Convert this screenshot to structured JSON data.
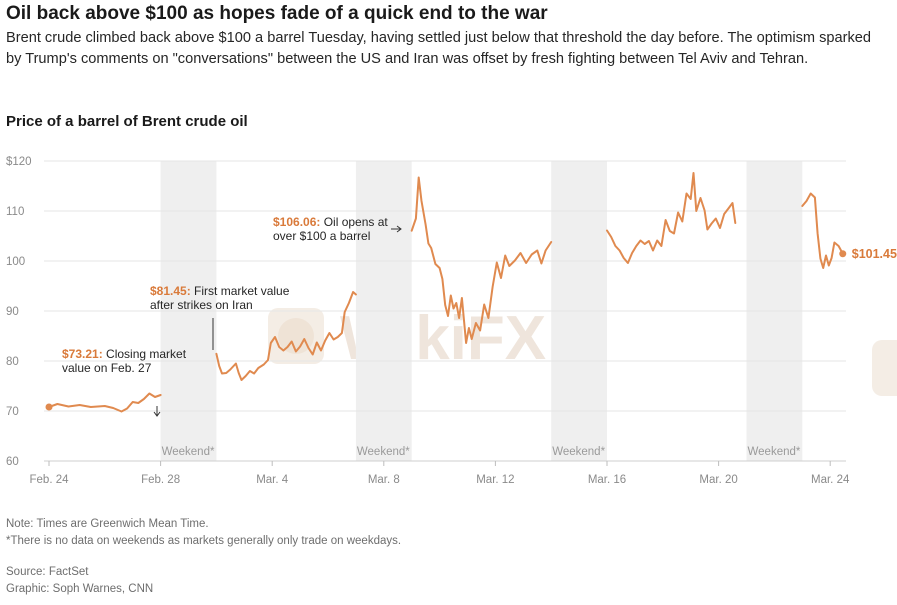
{
  "headline": "Oil back above $100 as hopes fade of a quick end to the war",
  "dek": "Brent crude climbed back above $100 a barrel Tuesday, having settled just below that threshold the day before. The optimism sparked by Trump's comments on \"conversations\" between the US and Iran was offset by fresh fighting between Tel Aviv and Tehran.",
  "chart_title": "Price of a barrel of Brent crude oil",
  "colors": {
    "line": "#e08a4f",
    "highlight": "#d97a3a",
    "weekend": "#efefef",
    "grid": "#e6e6e6"
  },
  "watermark": "WikiFX",
  "chart_data": {
    "type": "line",
    "title": "Price of a barrel of Brent crude oil",
    "xlabel": "",
    "ylabel": "",
    "unit": "USD per barrel",
    "x_domain_days": [
      0,
      28.5
    ],
    "ylim": [
      60,
      120
    ],
    "y_ticks": [
      {
        "value": 60,
        "label": "60"
      },
      {
        "value": 70,
        "label": "70"
      },
      {
        "value": 80,
        "label": "80"
      },
      {
        "value": 90,
        "label": "90"
      },
      {
        "value": 100,
        "label": "100"
      },
      {
        "value": 110,
        "label": "110"
      },
      {
        "value": 120,
        "label": "$120"
      }
    ],
    "x_ticks": [
      {
        "day": 0,
        "label": "Feb. 24"
      },
      {
        "day": 4,
        "label": "Feb. 28"
      },
      {
        "day": 8,
        "label": "Mar. 4"
      },
      {
        "day": 12,
        "label": "Mar. 8"
      },
      {
        "day": 16,
        "label": "Mar. 12"
      },
      {
        "day": 20,
        "label": "Mar. 16"
      },
      {
        "day": 24,
        "label": "Mar. 20"
      },
      {
        "day": 28,
        "label": "Mar. 24"
      }
    ],
    "weekends": [
      {
        "start": 4,
        "end": 6,
        "label": "Weekend*"
      },
      {
        "start": 11,
        "end": 13,
        "label": "Weekend*"
      },
      {
        "start": 18,
        "end": 20,
        "label": "Weekend*"
      },
      {
        "start": 25,
        "end": 27,
        "label": "Weekend*"
      }
    ],
    "series": [
      {
        "name": "Brent crude",
        "segments": [
          [
            [
              0,
              70.8
            ],
            [
              0.3,
              71.4
            ],
            [
              0.7,
              70.9
            ],
            [
              1.1,
              71.2
            ],
            [
              1.5,
              70.8
            ],
            [
              2,
              71.0
            ],
            [
              2.3,
              70.6
            ],
            [
              2.6,
              69.9
            ],
            [
              2.8,
              70.5
            ],
            [
              3.0,
              71.8
            ],
            [
              3.2,
              71.6
            ],
            [
              3.4,
              72.4
            ],
            [
              3.6,
              73.5
            ],
            [
              3.8,
              72.8
            ],
            [
              4.0,
              73.21
            ]
          ],
          [
            [
              6.0,
              81.45
            ],
            [
              6.1,
              79.0
            ],
            [
              6.2,
              77.5
            ],
            [
              6.35,
              77.6
            ],
            [
              6.5,
              78.3
            ],
            [
              6.7,
              79.5
            ],
            [
              6.8,
              77.6
            ],
            [
              6.9,
              76.2
            ],
            [
              7.05,
              77.0
            ],
            [
              7.2,
              78.0
            ],
            [
              7.35,
              77.5
            ],
            [
              7.5,
              78.6
            ],
            [
              7.7,
              79.3
            ],
            [
              7.85,
              80.2
            ],
            [
              7.95,
              83.6
            ],
            [
              8.1,
              84.8
            ],
            [
              8.25,
              82.8
            ],
            [
              8.4,
              82.1
            ],
            [
              8.55,
              82.8
            ],
            [
              8.7,
              83.9
            ],
            [
              8.85,
              81.9
            ],
            [
              9.0,
              82.9
            ],
            [
              9.15,
              84.4
            ],
            [
              9.3,
              82.6
            ],
            [
              9.45,
              81.3
            ],
            [
              9.6,
              83.7
            ],
            [
              9.75,
              82.1
            ],
            [
              9.9,
              84.1
            ],
            [
              10.05,
              85.6
            ],
            [
              10.2,
              84.3
            ],
            [
              10.35,
              84.8
            ],
            [
              10.5,
              85.6
            ],
            [
              10.6,
              89.8
            ],
            [
              10.75,
              91.6
            ],
            [
              10.9,
              93.8
            ],
            [
              11.0,
              93.3
            ]
          ],
          [
            [
              13.0,
              106.06
            ],
            [
              13.15,
              108.5
            ],
            [
              13.25,
              116.7
            ],
            [
              13.35,
              112.0
            ],
            [
              13.5,
              107.3
            ],
            [
              13.6,
              103.5
            ],
            [
              13.7,
              102.6
            ],
            [
              13.85,
              99.4
            ],
            [
              14.0,
              98.6
            ],
            [
              14.1,
              96.4
            ],
            [
              14.2,
              91.2
            ],
            [
              14.3,
              89.0
            ],
            [
              14.4,
              93.1
            ],
            [
              14.5,
              90.5
            ],
            [
              14.6,
              91.6
            ],
            [
              14.7,
              88.6
            ],
            [
              14.8,
              92.6
            ],
            [
              14.95,
              83.6
            ],
            [
              15.05,
              86.6
            ],
            [
              15.15,
              84.4
            ],
            [
              15.3,
              87.6
            ],
            [
              15.45,
              86.1
            ],
            [
              15.6,
              91.3
            ],
            [
              15.75,
              88.6
            ],
            [
              15.9,
              94.8
            ],
            [
              16.05,
              99.7
            ],
            [
              16.2,
              96.6
            ],
            [
              16.35,
              101.1
            ],
            [
              16.5,
              99.0
            ],
            [
              16.7,
              100.1
            ],
            [
              16.9,
              101.6
            ],
            [
              17.1,
              99.6
            ],
            [
              17.3,
              101.3
            ],
            [
              17.5,
              102.1
            ],
            [
              17.65,
              99.5
            ],
            [
              17.8,
              102.1
            ],
            [
              18.0,
              103.8
            ]
          ],
          [
            [
              20.0,
              106.1
            ],
            [
              20.15,
              104.8
            ],
            [
              20.3,
              103.0
            ],
            [
              20.45,
              102.1
            ],
            [
              20.6,
              100.6
            ],
            [
              20.75,
              99.6
            ],
            [
              20.9,
              101.6
            ],
            [
              21.05,
              103.0
            ],
            [
              21.2,
              104.1
            ],
            [
              21.35,
              103.4
            ],
            [
              21.5,
              104.0
            ],
            [
              21.65,
              102.1
            ],
            [
              21.8,
              104.1
            ],
            [
              21.95,
              103.0
            ],
            [
              22.1,
              108.2
            ],
            [
              22.25,
              106.0
            ],
            [
              22.4,
              105.5
            ],
            [
              22.55,
              109.7
            ],
            [
              22.7,
              107.9
            ],
            [
              22.85,
              113.5
            ],
            [
              23.0,
              112.4
            ],
            [
              23.1,
              117.6
            ],
            [
              23.2,
              110.0
            ],
            [
              23.35,
              112.6
            ],
            [
              23.5,
              110.1
            ],
            [
              23.6,
              106.3
            ],
            [
              23.75,
              107.5
            ],
            [
              23.9,
              108.5
            ],
            [
              24.05,
              106.6
            ],
            [
              24.2,
              109.4
            ],
            [
              24.35,
              110.5
            ],
            [
              24.5,
              111.6
            ],
            [
              24.6,
              107.6
            ]
          ],
          [
            [
              27.0,
              111.0
            ],
            [
              27.15,
              112.0
            ],
            [
              27.3,
              113.5
            ],
            [
              27.45,
              112.7
            ],
            [
              27.55,
              105.5
            ],
            [
              27.65,
              100.5
            ],
            [
              27.75,
              98.6
            ],
            [
              27.85,
              101.1
            ],
            [
              27.95,
              99.1
            ],
            [
              28.05,
              100.6
            ],
            [
              28.15,
              103.7
            ],
            [
              28.3,
              103.0
            ],
            [
              28.45,
              101.45
            ]
          ]
        ]
      }
    ],
    "start_point": {
      "day": 0,
      "value": 70.8
    },
    "end_point": {
      "day": 28.45,
      "value": 101.45,
      "label": "$101.45"
    },
    "annotations": [
      {
        "id": "feb27",
        "day": 4.0,
        "value": 73.21,
        "highlight": "$73.21:",
        "line1_rest": " Closing market",
        "line2": "value on Feb. 27"
      },
      {
        "id": "first",
        "day": 6.0,
        "value": 81.45,
        "highlight": "$81.45:",
        "line1_rest": " First market value",
        "line2": "after strikes on Iran"
      },
      {
        "id": "open100",
        "day": 13.0,
        "value": 106.06,
        "highlight": "$106.06:",
        "line1_rest": " Oil opens at",
        "line2": "over $100 a barrel"
      }
    ]
  },
  "footer": {
    "note1": "Note: Times are Greenwich Mean Time.",
    "note2": "*There is no data on weekends as markets generally only trade on weekdays.",
    "source": "Source: FactSet",
    "credit": "Graphic: Soph Warnes, CNN"
  }
}
